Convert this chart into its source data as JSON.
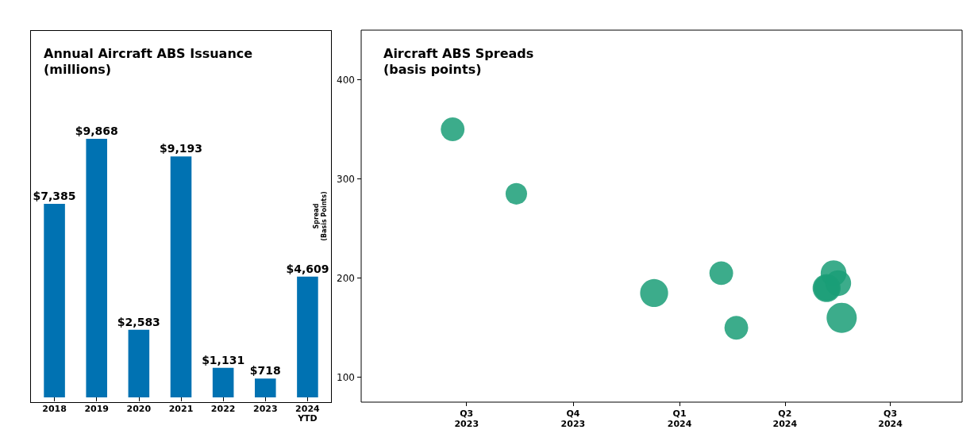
{
  "chart_data": [
    {
      "type": "bar",
      "title": "Annual Aircraft ABS Issuance\n(millions)",
      "categories": [
        "2018",
        "2019",
        "2020",
        "2021",
        "2022",
        "2023",
        "2024\nYTD"
      ],
      "values": [
        7385,
        9868,
        2583,
        9193,
        1131,
        718,
        4609
      ],
      "value_labels": [
        "$7,385",
        "$9,868",
        "$2,583",
        "$9,193",
        "$1,131",
        "$718",
        "$4,609"
      ],
      "color": "#0072b2",
      "tick_labels": "x"
    },
    {
      "type": "bubble",
      "title": "Aircraft ABS Spreads\n(basis points)",
      "ylabel": "Spread\n(Basis Points)",
      "x": [
        "2023-06-19",
        "2023-08-13",
        "2023-12-10",
        "2024-02-06",
        "2024-02-19",
        "2024-05-07",
        "2024-05-07",
        "2024-05-13",
        "2024-05-17",
        "2024-05-20"
      ],
      "values": [
        350,
        285,
        185,
        205,
        150,
        190,
        190,
        205,
        195,
        160
      ],
      "sizes": [
        0.62,
        0.51,
        0.86,
        0.62,
        0.62,
        0.86,
        0.73,
        0.73,
        0.73,
        1
      ],
      "color": "#1a9e77",
      "xlim": [
        "2023-04-01",
        "2024-09-01"
      ],
      "ylim": [
        75,
        450
      ],
      "xticks": [
        {
          "value": "2023-07-01",
          "label": "Q3\n2023"
        },
        {
          "value": "2023-10-01",
          "label": "Q4\n2023"
        },
        {
          "value": "2024-01-01",
          "label": "Q1\n2024"
        },
        {
          "value": "2024-04-01",
          "label": "Q2\n2024"
        },
        {
          "value": "2024-07-01",
          "label": "Q3\n2024"
        }
      ],
      "yticks": [
        100,
        200,
        300,
        400
      ]
    }
  ]
}
